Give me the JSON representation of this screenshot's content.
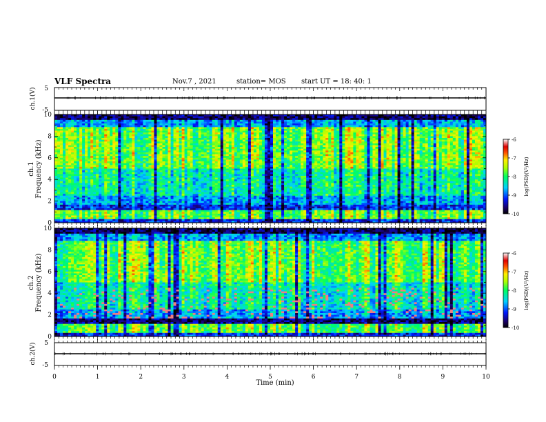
{
  "header": {
    "title": "VLF Spectra",
    "date": "Nov.7 , 2021",
    "station": "station= MOS",
    "start": "start UT = 18: 40: 1"
  },
  "chart_data": [
    {
      "type": "line",
      "panel": "ch1-waveform",
      "ylabel": "ch.1(V)",
      "ylim": [
        -5,
        5
      ],
      "yticks": [
        "5",
        "-5"
      ],
      "xlim": [
        0,
        10
      ],
      "series_level": 0
    },
    {
      "type": "heatmap",
      "panel": "ch1-spectrogram",
      "ylabel_channel": "ch.1",
      "ylabel": "Frequency (kHz)",
      "ylim": [
        0,
        10
      ],
      "yticks": [
        "0",
        "2",
        "4",
        "6",
        "8",
        "10"
      ],
      "xlim": [
        0,
        10
      ],
      "colorbar": {
        "label": "log(PSD)(V²/Hz)",
        "range": [
          -10,
          -6
        ],
        "ticks": [
          "-6",
          "-7",
          "-8",
          "-9",
          "-10"
        ]
      }
    },
    {
      "type": "heatmap",
      "panel": "ch2-spectrogram",
      "ylabel_channel": "ch.2",
      "ylabel": "Frequency (kHz)",
      "ylim": [
        0,
        10
      ],
      "yticks": [
        "0",
        "2",
        "4",
        "6",
        "8",
        "10"
      ],
      "xlim": [
        0,
        10
      ],
      "colorbar": {
        "label": "log(PSD)(V²/Hz)",
        "range": [
          -10,
          -6
        ],
        "ticks": [
          "-6",
          "-7",
          "-8",
          "-9",
          "-10"
        ]
      }
    },
    {
      "type": "line",
      "panel": "ch2-waveform",
      "ylabel": "ch.2(V)",
      "ylim": [
        -5,
        5
      ],
      "yticks": [
        "5",
        "-5"
      ],
      "xlim": [
        0,
        10
      ],
      "series_level": 0,
      "xlabel": "Time (min)",
      "xticks": [
        "0",
        "1",
        "2",
        "3",
        "4",
        "5",
        "6",
        "7",
        "8",
        "9",
        "10"
      ]
    }
  ]
}
